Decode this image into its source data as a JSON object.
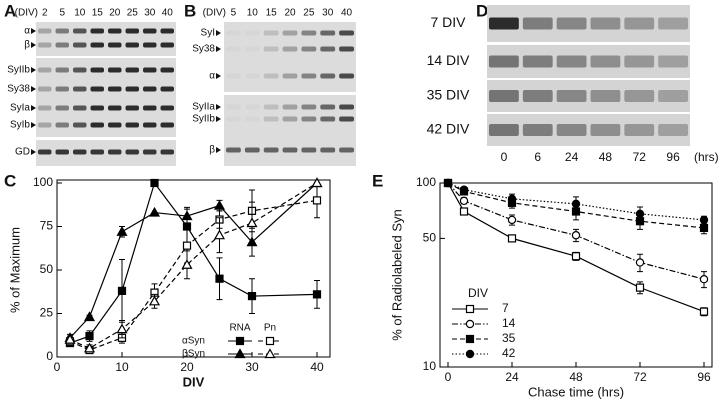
{
  "panel_labels": [
    "A",
    "B",
    "C",
    "D",
    "E"
  ],
  "gel_a": {
    "axis_label": "(DIV)",
    "lanes": [
      "2",
      "5",
      "10",
      "15",
      "20",
      "25",
      "30",
      "40"
    ],
    "bands": [
      "α",
      "β",
      "SyIIb",
      "Sy38",
      "SyIa",
      "SyIb",
      "GD"
    ]
  },
  "gel_b": {
    "axis_label": "(DIV)",
    "lanes": [
      "5",
      "10",
      "15",
      "20",
      "25",
      "30",
      "40"
    ],
    "bands": [
      "SyI",
      "Sy38",
      "α",
      "SyIIa",
      "SyIIb",
      "β"
    ]
  },
  "gel_d": {
    "rows": [
      "7 DIV",
      "14 DIV",
      "35 DIV",
      "42 DIV"
    ],
    "lanes": [
      "0",
      "6",
      "24",
      "48",
      "72",
      "96"
    ],
    "axis_label": "(hrs)"
  },
  "chart_data": [
    {
      "type": "line",
      "xlabel": "DIV",
      "ylabel": "% of Maximum",
      "x": [
        2,
        5,
        10,
        15,
        20,
        25,
        30,
        40
      ],
      "xlim": [
        0,
        42
      ],
      "xticks": [
        0,
        10,
        20,
        30,
        40
      ],
      "ylim": [
        0,
        100
      ],
      "yticks": [
        0,
        25,
        50,
        75,
        100
      ],
      "legend": {
        "columns": [
          "RNA",
          "Pn"
        ],
        "rows": [
          "αSyn",
          "βSyn"
        ]
      },
      "series": [
        {
          "values": [
            8,
            12,
            38,
            100,
            75,
            45,
            35,
            36
          ],
          "errors": [
            2,
            3,
            18,
            0,
            10,
            12,
            10,
            8
          ],
          "marker": "square",
          "filled": true,
          "dash": "solid",
          "color": "#000000"
        },
        {
          "values": [
            11,
            23,
            72,
            83,
            81,
            87,
            66,
            100
          ],
          "errors": [
            2,
            1,
            3,
            0,
            5,
            3,
            8,
            0
          ],
          "marker": "triangle",
          "filled": true,
          "dash": "solid",
          "color": "#000000"
        },
        {
          "values": [
            9,
            4,
            11,
            37,
            64,
            79,
            84,
            90
          ],
          "errors": [
            2,
            2,
            3,
            5,
            10,
            5,
            12,
            10
          ],
          "marker": "square",
          "filled": false,
          "dash": "dashed",
          "color": "#000000"
        },
        {
          "values": [
            10,
            5,
            16,
            32,
            53,
            70,
            77,
            100
          ],
          "errors": [
            2,
            2,
            5,
            4,
            8,
            10,
            12,
            0
          ],
          "marker": "triangle",
          "filled": false,
          "dash": "dashed",
          "color": "#000000"
        }
      ]
    },
    {
      "type": "line",
      "xlabel": "Chase time (hrs)",
      "ylabel": "% of Radiolabeled Syn",
      "log_y": true,
      "x": [
        0,
        6,
        24,
        48,
        72,
        96
      ],
      "xlim": [
        -3,
        99
      ],
      "xticks": [
        0,
        24,
        48,
        72,
        96
      ],
      "ylim": [
        10,
        100
      ],
      "yticks": [
        10,
        50,
        100
      ],
      "legend_title": "DIV",
      "series": [
        {
          "name": "7",
          "values": [
            100,
            70,
            50,
            40,
            27,
            20
          ],
          "errors": [
            3,
            3,
            2,
            2,
            2,
            1
          ],
          "marker": "square",
          "filled": false,
          "dash": "solid",
          "color": "#000000"
        },
        {
          "name": "14",
          "values": [
            100,
            80,
            63,
            52,
            37,
            30
          ],
          "errors": [
            3,
            3,
            4,
            4,
            4,
            3
          ],
          "marker": "circle",
          "filled": false,
          "dash": "dashdot",
          "color": "#000000"
        },
        {
          "name": "35",
          "values": [
            100,
            90,
            78,
            70,
            62,
            57
          ],
          "errors": [
            3,
            4,
            5,
            7,
            6,
            4
          ],
          "marker": "square",
          "filled": true,
          "dash": "dashed",
          "color": "#000000"
        },
        {
          "name": "42",
          "values": [
            100,
            92,
            82,
            77,
            68,
            63
          ],
          "errors": [
            3,
            3,
            5,
            7,
            6,
            3
          ],
          "marker": "circle",
          "filled": true,
          "dash": "dotted",
          "color": "#000000"
        }
      ]
    }
  ]
}
